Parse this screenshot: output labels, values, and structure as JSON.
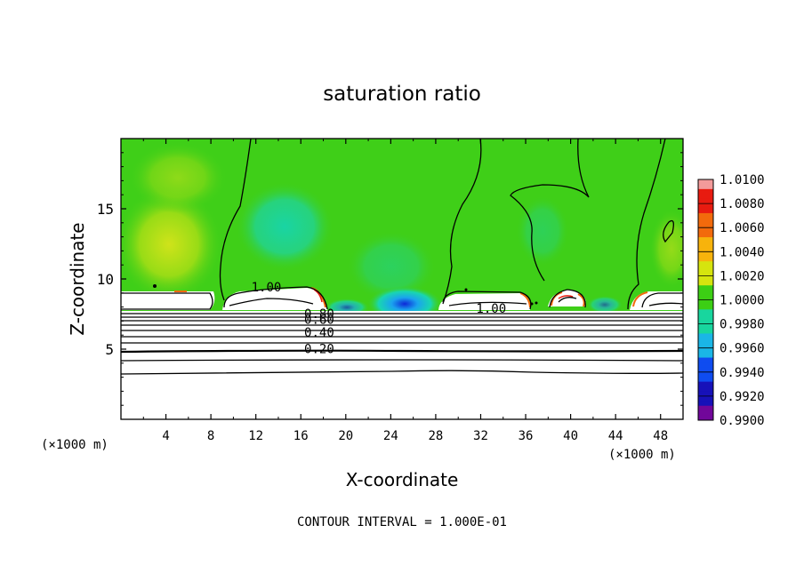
{
  "chart_data": {
    "type": "heatmap",
    "title": "saturation ratio",
    "xlabel": "X-coordinate",
    "ylabel": "Z-coordinate",
    "x_unit": "(×1000 m)",
    "x_unit_right": "(×1000 m)",
    "footer": "CONTOUR INTERVAL = 1.000E-01",
    "xlim": [
      0,
      50
    ],
    "ylim": [
      0,
      20
    ],
    "x_ticks": [
      4,
      8,
      12,
      16,
      20,
      24,
      28,
      32,
      36,
      40,
      44,
      48
    ],
    "y_ticks": [
      5,
      10,
      15
    ],
    "colorbar": {
      "levels": [
        "1.0100",
        "1.0080",
        "1.0060",
        "1.0040",
        "1.0020",
        "1.0000",
        "0.9980",
        "0.9960",
        "0.9940",
        "0.9920",
        "0.9900"
      ],
      "colors": [
        "#f39b9b",
        "#e81b10",
        "#f26a0c",
        "#f7b30c",
        "#d6e40e",
        "#3ccf14",
        "#18d69e",
        "#1ab6e6",
        "#0f4cf0",
        "#1711b9",
        "#71079a"
      ]
    },
    "contour_labels": [
      {
        "text": "1.00",
        "x": 11.6,
        "z": 9.1
      },
      {
        "text": "1.00",
        "x": 31.6,
        "z": 7.6
      },
      {
        "text": "0.80",
        "x": 16.3,
        "z": 7.2
      },
      {
        "text": "0.60",
        "x": 16.3,
        "z": 6.8
      },
      {
        "text": "0.40",
        "x": 16.3,
        "z": 5.9
      },
      {
        "text": "0.20",
        "x": 16.3,
        "z": 4.7
      }
    ],
    "contour_levels": [
      0.2,
      0.3,
      0.4,
      0.5,
      0.6,
      0.7,
      0.8,
      0.9,
      1.0
    ]
  }
}
